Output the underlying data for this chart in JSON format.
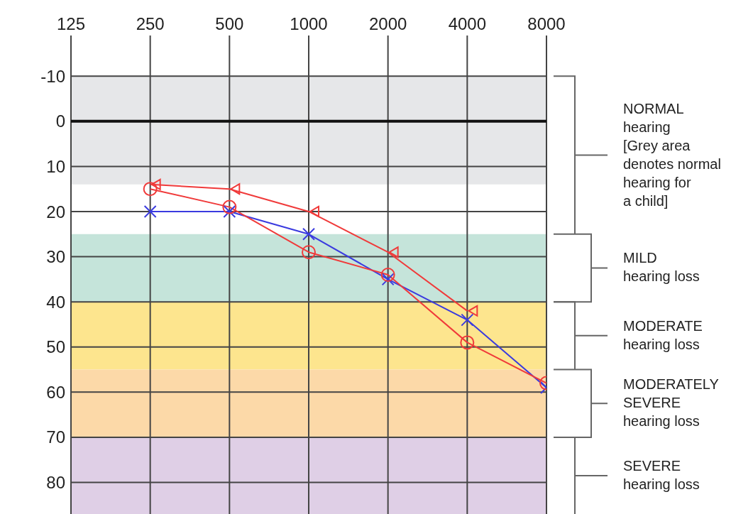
{
  "chart_data": {
    "type": "line",
    "categories": [
      "125",
      "250",
      "500",
      "1000",
      "2000",
      "4000",
      "8000"
    ],
    "ylim": [
      87,
      -19
    ],
    "yticks": [
      -10,
      0,
      10,
      20,
      30,
      40,
      50,
      60,
      70,
      80
    ],
    "grid": true,
    "line_style": "solid",
    "series": [
      {
        "color": "#f03a3a",
        "marker": "triangle",
        "values": [
          null,
          14,
          15,
          20,
          29,
          42,
          null
        ]
      },
      {
        "color": "#3a3adf",
        "marker": "cross",
        "values": [
          null,
          20,
          20,
          25,
          35,
          44,
          59
        ]
      },
      {
        "color": "#f03a3a",
        "marker": "circle",
        "values": [
          null,
          15,
          19,
          29,
          34,
          49,
          58
        ]
      }
    ],
    "ref_lines": [
      {
        "axis": "y",
        "value": 0,
        "color": "#111111"
      }
    ],
    "bands": [
      {
        "axis": "y",
        "from": -10,
        "to": 14,
        "color": "#e6e7e9"
      },
      {
        "axis": "y",
        "from": 25,
        "to": 40,
        "color": "#c5e4da"
      },
      {
        "axis": "y",
        "from": 40,
        "to": 55,
        "color": "#fde58e"
      },
      {
        "axis": "y",
        "from": 55,
        "to": 70,
        "color": "#fcd9a8"
      },
      {
        "axis": "y",
        "from": 70,
        "to": 87,
        "color": "#dfcfe6"
      }
    ],
    "annotations": [
      "NORMAL\nhearing\n[Grey area\ndenotes normal\nhearing for\na child]",
      "MILD\nhearing loss",
      "MODERATE\nhearing loss",
      "MODERATELY\nSEVERE\nhearing loss",
      "SEVERE\nhearing loss"
    ]
  }
}
